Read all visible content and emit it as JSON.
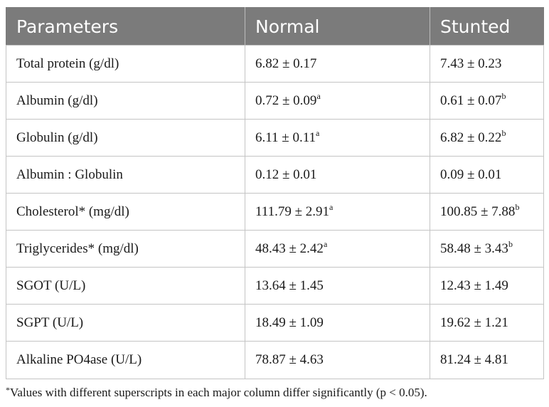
{
  "table": {
    "headers": [
      "Parameters",
      "Normal",
      "Stunted"
    ],
    "rows": [
      {
        "parameter": "Total protein (g/dl)",
        "normal": "6.82 ± 0.17",
        "normal_sup": "",
        "stunted": "7.43 ± 0.23",
        "stunted_sup": ""
      },
      {
        "parameter": "Albumin (g/dl)",
        "normal": "0.72 ± 0.09",
        "normal_sup": "a",
        "stunted": "0.61 ± 0.07",
        "stunted_sup": "b"
      },
      {
        "parameter": "Globulin (g/dl)",
        "normal": "6.11 ± 0.11",
        "normal_sup": "a",
        "stunted": "6.82 ± 0.22",
        "stunted_sup": "b"
      },
      {
        "parameter": "Albumin : Globulin",
        "normal": "0.12 ± 0.01",
        "normal_sup": "",
        "stunted": "0.09 ± 0.01",
        "stunted_sup": ""
      },
      {
        "parameter": "Cholesterol* (mg/dl)",
        "normal": "111.79 ± 2.91",
        "normal_sup": "a",
        "stunted": "100.85 ± 7.88",
        "stunted_sup": "b"
      },
      {
        "parameter": "Triglycerides* (mg/dl)",
        "normal": "48.43 ± 2.42",
        "normal_sup": "a",
        "stunted": "58.48 ± 3.43",
        "stunted_sup": "b"
      },
      {
        "parameter": "SGOT (U/L)",
        "normal": "13.64 ± 1.45",
        "normal_sup": "",
        "stunted": "12.43 ± 1.49",
        "stunted_sup": ""
      },
      {
        "parameter": "SGPT (U/L)",
        "normal": "18.49 ± 1.09",
        "normal_sup": "",
        "stunted": "19.62 ± 1.21",
        "stunted_sup": ""
      },
      {
        "parameter": "Alkaline PO4ase (U/L)",
        "normal": "78.87 ± 4.63",
        "normal_sup": "",
        "stunted": "81.24 ± 4.81",
        "stunted_sup": ""
      }
    ]
  },
  "footnote": {
    "marker": "*",
    "text": "Values with different superscripts in each major column differ significantly (p < 0.05)."
  },
  "colors": {
    "header_background": "#7b7b7b",
    "header_text": "#ffffff",
    "grid_lines": "#c4c4c4"
  }
}
